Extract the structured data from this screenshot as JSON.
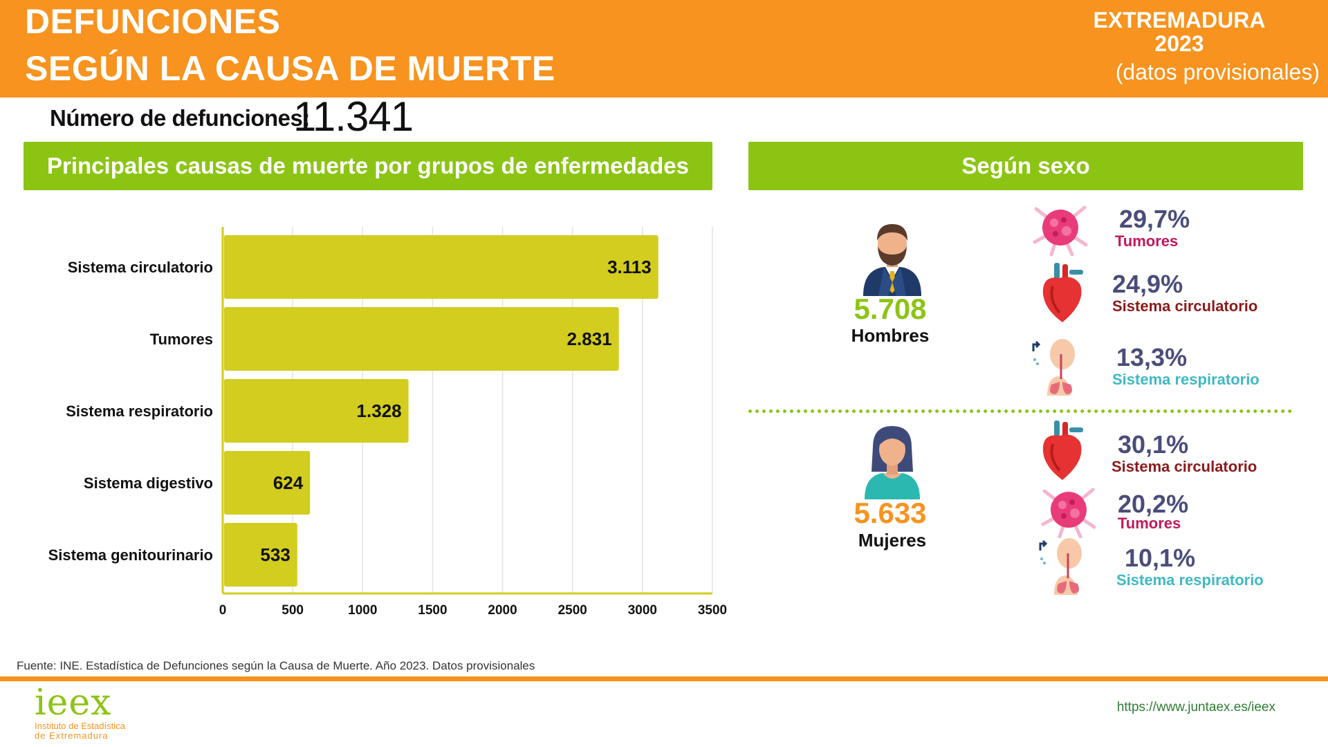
{
  "header": {
    "title_line1": "DEFUNCIONES",
    "title_line2": "SEGÚN LA CAUSA DE  MUERTE",
    "region": "EXTREMADURA",
    "year": "2023",
    "note": "(datos provisionales)"
  },
  "total": {
    "label": "Número de defunciones:",
    "value": "11.341"
  },
  "banners": {
    "left": "Principales causas de muerte por grupos de enfermedades",
    "right": "Según sexo"
  },
  "chart_data": {
    "type": "bar",
    "orientation": "horizontal",
    "categories": [
      "Sistema circulatorio",
      "Tumores",
      "Sistema respiratorio",
      "Sistema digestivo",
      "Sistema genitourinario"
    ],
    "values": [
      3113,
      2831,
      1328,
      624,
      533
    ],
    "value_labels": [
      "3.113",
      "2.831",
      "1.328",
      "624",
      "533"
    ],
    "xlim": [
      0,
      3500
    ],
    "xticks": [
      0,
      500,
      1000,
      1500,
      2000,
      2500,
      3000,
      3500
    ],
    "grid": true,
    "bar_color": "#d2cd1e"
  },
  "sex": {
    "men": {
      "count": "5.708",
      "label": "Hombres",
      "count_color": "#8cc414",
      "causes": [
        {
          "pct": "29,7%",
          "name": "Tumores",
          "icon": "tumor-icon",
          "color": "#c2185b"
        },
        {
          "pct": "24,9%",
          "name": "Sistema circulatorio",
          "icon": "heart-icon",
          "color": "#8b1a1a"
        },
        {
          "pct": "13,3%",
          "name": "Sistema respiratorio",
          "icon": "lungs-icon",
          "color": "#3fb8c4"
        }
      ]
    },
    "women": {
      "count": "5.633",
      "label": "Mujeres",
      "count_color": "#f7931e",
      "causes": [
        {
          "pct": "30,1%",
          "name": "Sistema circulatorio",
          "icon": "heart-icon",
          "color": "#8b1a1a"
        },
        {
          "pct": "20,2%",
          "name": "Tumores",
          "icon": "tumor-icon",
          "color": "#c2185b"
        },
        {
          "pct": "10,1%",
          "name": "Sistema respiratorio",
          "icon": "lungs-icon",
          "color": "#3fb8c4"
        }
      ]
    }
  },
  "footer": {
    "source": "Fuente: INE. Estadística de Defunciones según la Causa de Muerte. Año 2023. Datos provisionales",
    "logo_text": "ieex",
    "logo_sub1": "Instituto de Estadística",
    "logo_sub2": "de Extremadura",
    "url": "https://www.juntaex.es/ieex"
  }
}
